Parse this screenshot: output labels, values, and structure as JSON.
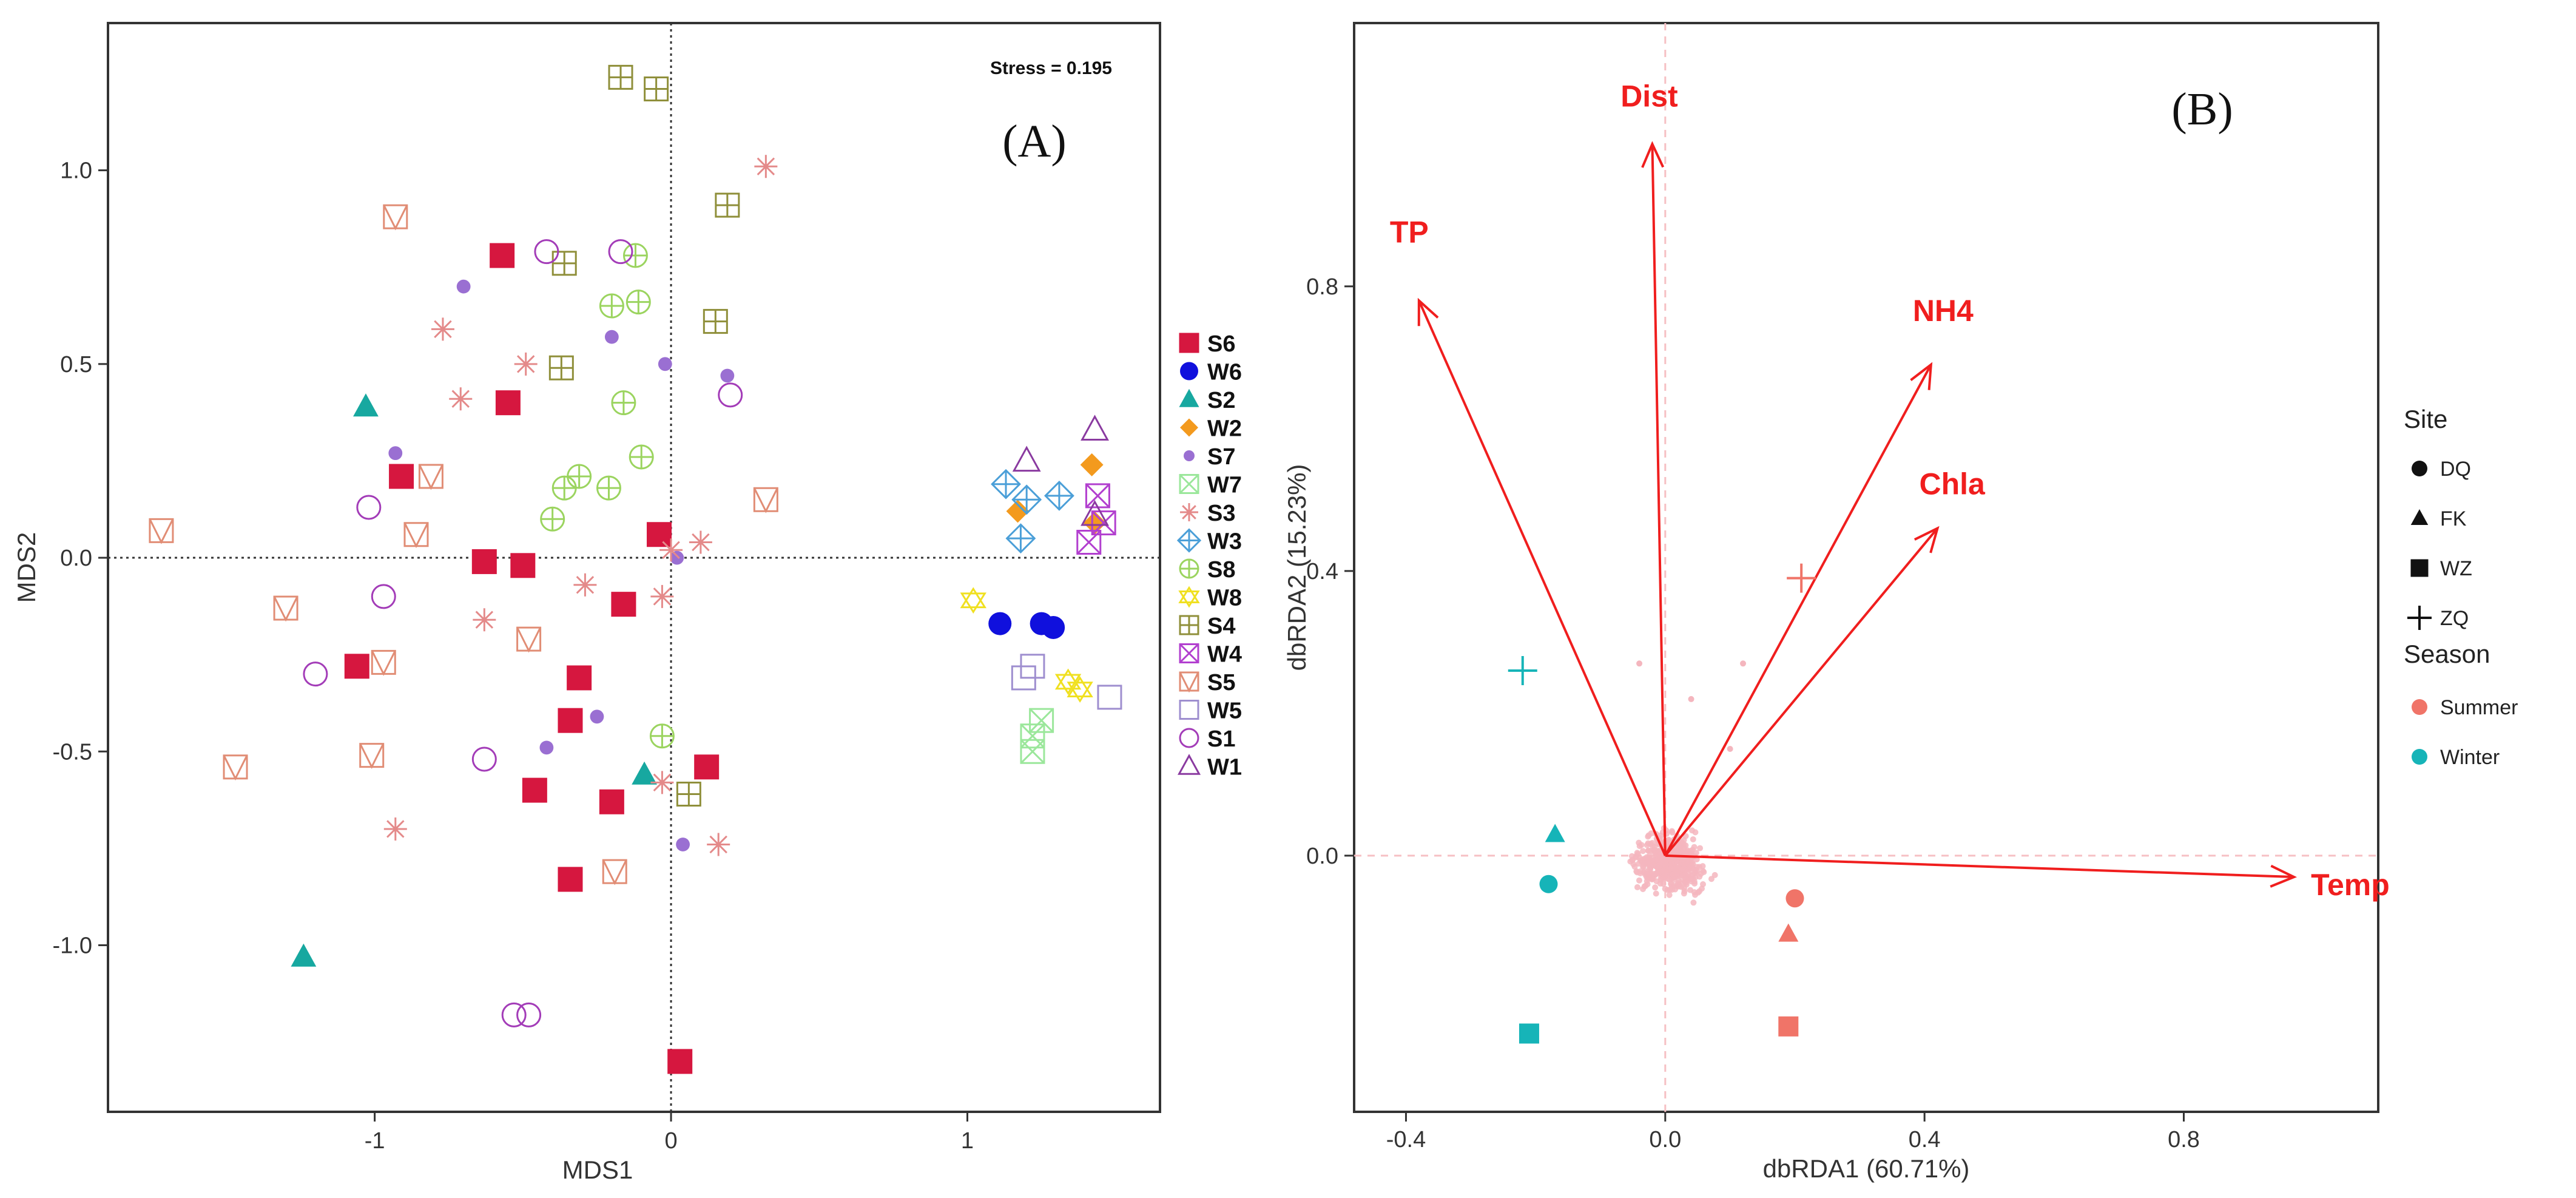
{
  "chart_data": [
    {
      "type": "scatter",
      "panel_label": "(A)",
      "stress_text": "Stress = 0.195",
      "xlabel": "MDS1",
      "ylabel": "MDS2",
      "xlim": [
        -1.9,
        1.65
      ],
      "ylim": [
        -1.43,
        1.38
      ],
      "x_ticks": [
        {
          "v": -1,
          "label": "-1"
        },
        {
          "v": 0,
          "label": "0"
        },
        {
          "v": 1,
          "label": "1"
        }
      ],
      "y_ticks": [
        {
          "v": -1,
          "label": "-1.0"
        },
        {
          "v": -0.5,
          "label": "-0.5"
        },
        {
          "v": 0,
          "label": "0.0"
        },
        {
          "v": 0.5,
          "label": "0.5"
        },
        {
          "v": 1,
          "label": "1.0"
        }
      ],
      "reference_lines": {
        "x": 0,
        "y": 0
      },
      "groups": [
        {
          "name": "S6",
          "shape": "square",
          "color": "#d6173f",
          "points": [
            [
              -0.57,
              0.78
            ],
            [
              -0.55,
              0.4
            ],
            [
              -0.91,
              0.21
            ],
            [
              -0.63,
              -0.01
            ],
            [
              -0.5,
              -0.02
            ],
            [
              -0.04,
              0.06
            ],
            [
              -0.16,
              -0.12
            ],
            [
              -1.06,
              -0.28
            ],
            [
              -0.31,
              -0.31
            ],
            [
              -0.34,
              -0.42
            ],
            [
              -0.46,
              -0.6
            ],
            [
              -0.2,
              -0.63
            ],
            [
              0.12,
              -0.54
            ],
            [
              -0.34,
              -0.83
            ],
            [
              0.03,
              -1.3
            ]
          ]
        },
        {
          "name": "W6",
          "shape": "circle",
          "color": "#1010dd",
          "points": [
            [
              1.11,
              -0.17
            ],
            [
              1.25,
              -0.17
            ],
            [
              1.29,
              -0.18
            ]
          ]
        },
        {
          "name": "S2",
          "shape": "triangle",
          "color": "#17a8a0",
          "points": [
            [
              -1.03,
              0.39
            ],
            [
              -0.09,
              -0.56
            ],
            [
              -1.24,
              -1.03
            ]
          ]
        },
        {
          "name": "W2",
          "shape": "diamond",
          "color": "#f39a1e",
          "points": [
            [
              1.17,
              0.12
            ],
            [
              1.42,
              0.24
            ],
            [
              1.43,
              0.09
            ]
          ]
        },
        {
          "name": "S7",
          "shape": "dot",
          "color": "#9a6fd2",
          "points": [
            [
              -0.7,
              0.7
            ],
            [
              -0.2,
              0.57
            ],
            [
              -0.93,
              0.27
            ],
            [
              -0.02,
              0.5
            ],
            [
              0.19,
              0.47
            ],
            [
              0.02,
              0.0
            ],
            [
              -0.25,
              -0.41
            ],
            [
              -0.42,
              -0.49
            ],
            [
              0.04,
              -0.74
            ]
          ]
        },
        {
          "name": "W7",
          "shape": "square-x",
          "color": "#9be79b",
          "points": [
            [
              1.25,
              -0.42
            ],
            [
              1.22,
              -0.46
            ],
            [
              1.22,
              -0.5
            ]
          ]
        },
        {
          "name": "S3",
          "shape": "asterisk",
          "color": "#e48a8a",
          "points": [
            [
              -0.77,
              0.59
            ],
            [
              -0.49,
              0.5
            ],
            [
              -0.71,
              0.41
            ],
            [
              -0.29,
              -0.07
            ],
            [
              -0.63,
              -0.16
            ],
            [
              0.1,
              0.04
            ],
            [
              -0.03,
              -0.1
            ],
            [
              -0.03,
              -0.58
            ],
            [
              0.16,
              -0.74
            ],
            [
              -0.93,
              -0.7
            ],
            [
              0.32,
              1.01
            ],
            [
              0.0,
              0.02
            ]
          ]
        },
        {
          "name": "W3",
          "shape": "diamond-plus",
          "color": "#4b9fd8",
          "points": [
            [
              1.13,
              0.19
            ],
            [
              1.2,
              0.15
            ],
            [
              1.31,
              0.16
            ],
            [
              1.18,
              0.05
            ]
          ]
        },
        {
          "name": "S8",
          "shape": "circle-plus",
          "color": "#9bd45f",
          "points": [
            [
              -0.12,
              0.78
            ],
            [
              -0.2,
              0.65
            ],
            [
              -0.11,
              0.66
            ],
            [
              -0.16,
              0.4
            ],
            [
              -0.31,
              0.21
            ],
            [
              -0.36,
              0.18
            ],
            [
              -0.21,
              0.18
            ],
            [
              -0.1,
              0.26
            ],
            [
              -0.4,
              0.1
            ],
            [
              -0.03,
              -0.46
            ]
          ]
        },
        {
          "name": "W8",
          "shape": "star-of-david",
          "color": "#f0e020",
          "points": [
            [
              1.02,
              -0.11
            ],
            [
              1.34,
              -0.32
            ],
            [
              1.38,
              -0.34
            ]
          ]
        },
        {
          "name": "S4",
          "shape": "square-plus",
          "color": "#8f8f3a",
          "points": [
            [
              -0.17,
              1.24
            ],
            [
              -0.05,
              1.21
            ],
            [
              0.19,
              0.91
            ],
            [
              -0.36,
              0.76
            ],
            [
              0.15,
              0.61
            ],
            [
              -0.37,
              0.49
            ],
            [
              0.06,
              -0.61
            ]
          ]
        },
        {
          "name": "W4",
          "shape": "square-x",
          "color": "#b23fcf",
          "points": [
            [
              1.44,
              0.16
            ],
            [
              1.46,
              0.09
            ],
            [
              1.41,
              0.04
            ]
          ]
        },
        {
          "name": "S5",
          "shape": "square-v",
          "color": "#e18d75",
          "points": [
            [
              -0.93,
              0.88
            ],
            [
              -0.81,
              0.21
            ],
            [
              -1.72,
              0.07
            ],
            [
              -0.86,
              0.06
            ],
            [
              -1.3,
              -0.13
            ],
            [
              -0.48,
              -0.21
            ],
            [
              -0.97,
              -0.27
            ],
            [
              -1.01,
              -0.51
            ],
            [
              -1.47,
              -0.54
            ],
            [
              0.32,
              0.15
            ],
            [
              -0.19,
              -0.81
            ]
          ]
        },
        {
          "name": "W5",
          "shape": "square-open",
          "color": "#9e8ecf",
          "points": [
            [
              1.22,
              -0.28
            ],
            [
              1.19,
              -0.31
            ],
            [
              1.48,
              -0.36
            ]
          ]
        },
        {
          "name": "S1",
          "shape": "circle-open",
          "color": "#a33cb8",
          "points": [
            [
              -0.42,
              0.79
            ],
            [
              -0.17,
              0.79
            ],
            [
              0.2,
              0.42
            ],
            [
              -1.02,
              0.13
            ],
            [
              -0.97,
              -0.1
            ],
            [
              -1.2,
              -0.3
            ],
            [
              -0.63,
              -0.52
            ],
            [
              -0.53,
              -1.18
            ],
            [
              -0.48,
              -1.18
            ]
          ]
        },
        {
          "name": "W1",
          "shape": "triangle-open",
          "color": "#8a3aa0",
          "points": [
            [
              1.2,
              0.25
            ],
            [
              1.43,
              0.33
            ],
            [
              1.43,
              0.11
            ]
          ]
        }
      ]
    },
    {
      "type": "scatter",
      "panel_label": "(B)",
      "xlabel": "dbRDA1 (60.71%)",
      "ylabel": "dbRDA2 (15.23%)",
      "xlim": [
        -0.48,
        1.1
      ],
      "ylim": [
        -0.36,
        1.17
      ],
      "x_ticks": [
        {
          "v": -0.4,
          "label": "-0.4"
        },
        {
          "v": 0,
          "label": "0.0"
        },
        {
          "v": 0.4,
          "label": "0.4"
        },
        {
          "v": 0.8,
          "label": "0.8"
        }
      ],
      "y_ticks": [
        {
          "v": 0,
          "label": "0.0"
        },
        {
          "v": 0.4,
          "label": "0.4"
        },
        {
          "v": 0.8,
          "label": "0.8"
        }
      ],
      "reference_lines": {
        "x": 0,
        "y": 0
      },
      "vectors": [
        {
          "label": "Dist",
          "x": -0.02,
          "y": 1.0
        },
        {
          "label": "TP",
          "x": -0.38,
          "y": 0.78
        },
        {
          "label": "NH4",
          "x": 0.41,
          "y": 0.69
        },
        {
          "label": "Chla",
          "x": 0.42,
          "y": 0.46
        },
        {
          "label": "Temp",
          "x": 0.97,
          "y": -0.03
        }
      ],
      "points": [
        {
          "site": "DQ",
          "season": "Summer",
          "x": 0.2,
          "y": -0.06
        },
        {
          "site": "FK",
          "season": "Summer",
          "x": 0.19,
          "y": -0.11
        },
        {
          "site": "WZ",
          "season": "Summer",
          "x": 0.19,
          "y": -0.24
        },
        {
          "site": "ZQ",
          "season": "Summer",
          "x": 0.21,
          "y": 0.39
        },
        {
          "site": "DQ",
          "season": "Winter",
          "x": -0.18,
          "y": -0.04
        },
        {
          "site": "FK",
          "season": "Winter",
          "x": -0.17,
          "y": 0.03
        },
        {
          "site": "WZ",
          "season": "Winter",
          "x": -0.21,
          "y": -0.25
        },
        {
          "site": "ZQ",
          "season": "Winter",
          "x": -0.22,
          "y": 0.26
        }
      ],
      "legend": {
        "site_title": "Site",
        "sites": [
          "DQ",
          "FK",
          "WZ",
          "ZQ"
        ],
        "season_title": "Season",
        "seasons": [
          {
            "name": "Summer",
            "color": "#f07468"
          },
          {
            "name": "Winter",
            "color": "#16b4b8"
          }
        ]
      },
      "cloud_color": "#f4b6be",
      "vector_color": "#f01e1e"
    }
  ]
}
